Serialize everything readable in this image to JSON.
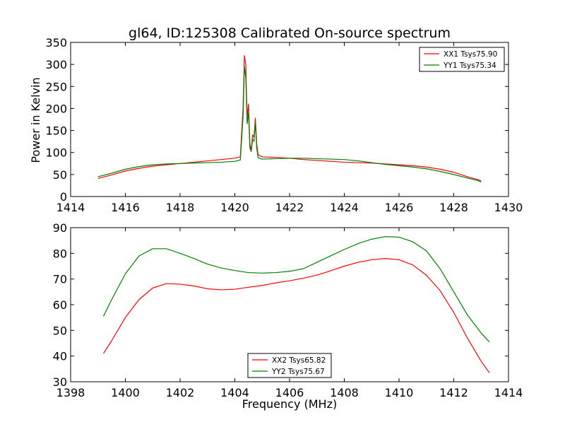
{
  "title": "gl64, ID:125308 Calibrated On-source spectrum",
  "chart_data": [
    {
      "type": "line",
      "title": "gl64, ID:125308 Calibrated On-source spectrum",
      "xlabel": "",
      "ylabel": "Power in Kelvin",
      "xlim": [
        1414,
        1430
      ],
      "ylim": [
        0,
        350
      ],
      "xticks": [
        1414,
        1416,
        1418,
        1420,
        1422,
        1424,
        1426,
        1428,
        1430
      ],
      "yticks": [
        0,
        50,
        100,
        150,
        200,
        250,
        300,
        350
      ],
      "grid": false,
      "legend_position": "top-right",
      "series": [
        {
          "name": "XX1 Tsys75.90",
          "color": "#ff0000",
          "points": [
            [
              1415.0,
              41
            ],
            [
              1415.5,
              49
            ],
            [
              1416.0,
              58
            ],
            [
              1416.5,
              64
            ],
            [
              1417.0,
              69
            ],
            [
              1417.5,
              72
            ],
            [
              1418.0,
              75
            ],
            [
              1418.5,
              78
            ],
            [
              1419.0,
              81
            ],
            [
              1419.5,
              84
            ],
            [
              1420.0,
              87
            ],
            [
              1420.2,
              90
            ],
            [
              1420.3,
              200
            ],
            [
              1420.35,
              320
            ],
            [
              1420.4,
              300
            ],
            [
              1420.45,
              180
            ],
            [
              1420.5,
              210
            ],
            [
              1420.55,
              120
            ],
            [
              1420.6,
              105
            ],
            [
              1420.65,
              140
            ],
            [
              1420.7,
              135
            ],
            [
              1420.75,
              178
            ],
            [
              1420.8,
              120
            ],
            [
              1420.85,
              95
            ],
            [
              1421.0,
              90
            ],
            [
              1421.5,
              89
            ],
            [
              1422.0,
              87
            ],
            [
              1422.5,
              84
            ],
            [
              1423.0,
              82
            ],
            [
              1423.5,
              80
            ],
            [
              1424.0,
              78
            ],
            [
              1424.5,
              77
            ],
            [
              1425.0,
              76
            ],
            [
              1425.5,
              74
            ],
            [
              1426.0,
              72
            ],
            [
              1426.5,
              70
            ],
            [
              1427.0,
              67
            ],
            [
              1427.5,
              62
            ],
            [
              1428.0,
              55
            ],
            [
              1428.5,
              45
            ],
            [
              1428.9,
              38
            ],
            [
              1429.0,
              35
            ]
          ]
        },
        {
          "name": "YY1 Tsys75.34",
          "color": "#008000",
          "points": [
            [
              1415.0,
              45
            ],
            [
              1415.5,
              53
            ],
            [
              1416.0,
              62
            ],
            [
              1416.5,
              68
            ],
            [
              1417.0,
              72
            ],
            [
              1417.5,
              74
            ],
            [
              1418.0,
              75
            ],
            [
              1418.5,
              76
            ],
            [
              1419.0,
              77
            ],
            [
              1419.5,
              78
            ],
            [
              1420.0,
              80
            ],
            [
              1420.2,
              83
            ],
            [
              1420.3,
              180
            ],
            [
              1420.35,
              295
            ],
            [
              1420.4,
              270
            ],
            [
              1420.45,
              165
            ],
            [
              1420.5,
              190
            ],
            [
              1420.55,
              110
            ],
            [
              1420.6,
              102
            ],
            [
              1420.65,
              130
            ],
            [
              1420.7,
              125
            ],
            [
              1420.75,
              168
            ],
            [
              1420.8,
              110
            ],
            [
              1420.85,
              88
            ],
            [
              1421.0,
              85
            ],
            [
              1421.5,
              86
            ],
            [
              1422.0,
              87
            ],
            [
              1422.5,
              87
            ],
            [
              1423.0,
              86
            ],
            [
              1423.5,
              85
            ],
            [
              1424.0,
              84
            ],
            [
              1424.5,
              81
            ],
            [
              1425.0,
              77
            ],
            [
              1425.5,
              73
            ],
            [
              1426.0,
              70
            ],
            [
              1426.5,
              67
            ],
            [
              1427.0,
              63
            ],
            [
              1427.5,
              57
            ],
            [
              1428.0,
              50
            ],
            [
              1428.5,
              42
            ],
            [
              1428.9,
              36
            ],
            [
              1429.0,
              33
            ]
          ]
        }
      ]
    },
    {
      "type": "line",
      "title": "",
      "xlabel": "Frequency (MHz)",
      "ylabel": "",
      "xlim": [
        1398,
        1414
      ],
      "ylim": [
        30,
        90
      ],
      "xticks": [
        1398,
        1400,
        1402,
        1404,
        1406,
        1408,
        1410,
        1412,
        1414
      ],
      "yticks": [
        30,
        40,
        50,
        60,
        70,
        80,
        90
      ],
      "grid": false,
      "legend_position": "bottom-center",
      "series": [
        {
          "name": "XX2 Tsys65.82",
          "color": "#ff0000",
          "points": [
            [
              1399.2,
              41
            ],
            [
              1399.5,
              46
            ],
            [
              1400.0,
              55
            ],
            [
              1400.5,
              62
            ],
            [
              1401.0,
              66.5
            ],
            [
              1401.5,
              68.2
            ],
            [
              1402.0,
              68
            ],
            [
              1402.5,
              67.3
            ],
            [
              1403.0,
              66.2
            ],
            [
              1403.5,
              65.8
            ],
            [
              1404.0,
              66
            ],
            [
              1404.5,
              66.8
            ],
            [
              1405.0,
              67.5
            ],
            [
              1405.5,
              68.5
            ],
            [
              1406.0,
              69.3
            ],
            [
              1406.5,
              70.3
            ],
            [
              1407.0,
              71.5
            ],
            [
              1407.5,
              73.2
            ],
            [
              1408.0,
              75
            ],
            [
              1408.5,
              76.5
            ],
            [
              1409.0,
              77.5
            ],
            [
              1409.5,
              78
            ],
            [
              1410.0,
              77.5
            ],
            [
              1410.5,
              75.5
            ],
            [
              1411.0,
              71.5
            ],
            [
              1411.5,
              65.5
            ],
            [
              1412.0,
              57
            ],
            [
              1412.5,
              47
            ],
            [
              1413.0,
              38
            ],
            [
              1413.3,
              33.5
            ]
          ]
        },
        {
          "name": "YY2 Tsys75.67",
          "color": "#008000",
          "points": [
            [
              1399.2,
              55.5
            ],
            [
              1399.5,
              62
            ],
            [
              1400.0,
              72
            ],
            [
              1400.5,
              79
            ],
            [
              1401.0,
              81.8
            ],
            [
              1401.5,
              81.8
            ],
            [
              1402.0,
              80
            ],
            [
              1402.5,
              78
            ],
            [
              1403.0,
              75.8
            ],
            [
              1403.5,
              74.3
            ],
            [
              1404.0,
              73.3
            ],
            [
              1404.5,
              72.5
            ],
            [
              1405.0,
              72.3
            ],
            [
              1405.5,
              72.5
            ],
            [
              1406.0,
              73
            ],
            [
              1406.5,
              74
            ],
            [
              1407.0,
              76.5
            ],
            [
              1407.5,
              79
            ],
            [
              1408.0,
              81.5
            ],
            [
              1408.5,
              83.8
            ],
            [
              1409.0,
              85.5
            ],
            [
              1409.5,
              86.5
            ],
            [
              1410.0,
              86.3
            ],
            [
              1410.5,
              84.5
            ],
            [
              1411.0,
              81
            ],
            [
              1411.5,
              74
            ],
            [
              1412.0,
              65
            ],
            [
              1412.5,
              56
            ],
            [
              1413.0,
              49
            ],
            [
              1413.3,
              45.5
            ]
          ]
        }
      ]
    }
  ]
}
